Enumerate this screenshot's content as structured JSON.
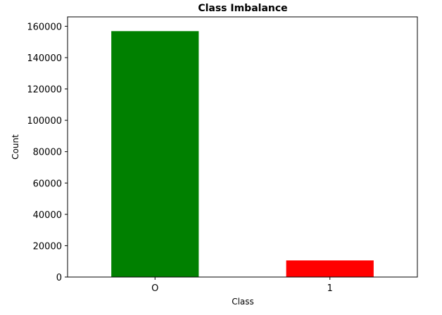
{
  "chart_data": {
    "type": "bar",
    "title": "Class Imbalance",
    "xlabel": "Class",
    "ylabel": "Count",
    "categories": [
      "O",
      "1"
    ],
    "values": [
      156900,
      10600
    ],
    "colors": [
      "#008000",
      "#ff0000"
    ],
    "ylim": [
      0,
      166000
    ],
    "yticks": [
      0,
      20000,
      40000,
      60000,
      80000,
      100000,
      120000,
      140000,
      160000
    ],
    "grid": false,
    "legend": "none"
  }
}
